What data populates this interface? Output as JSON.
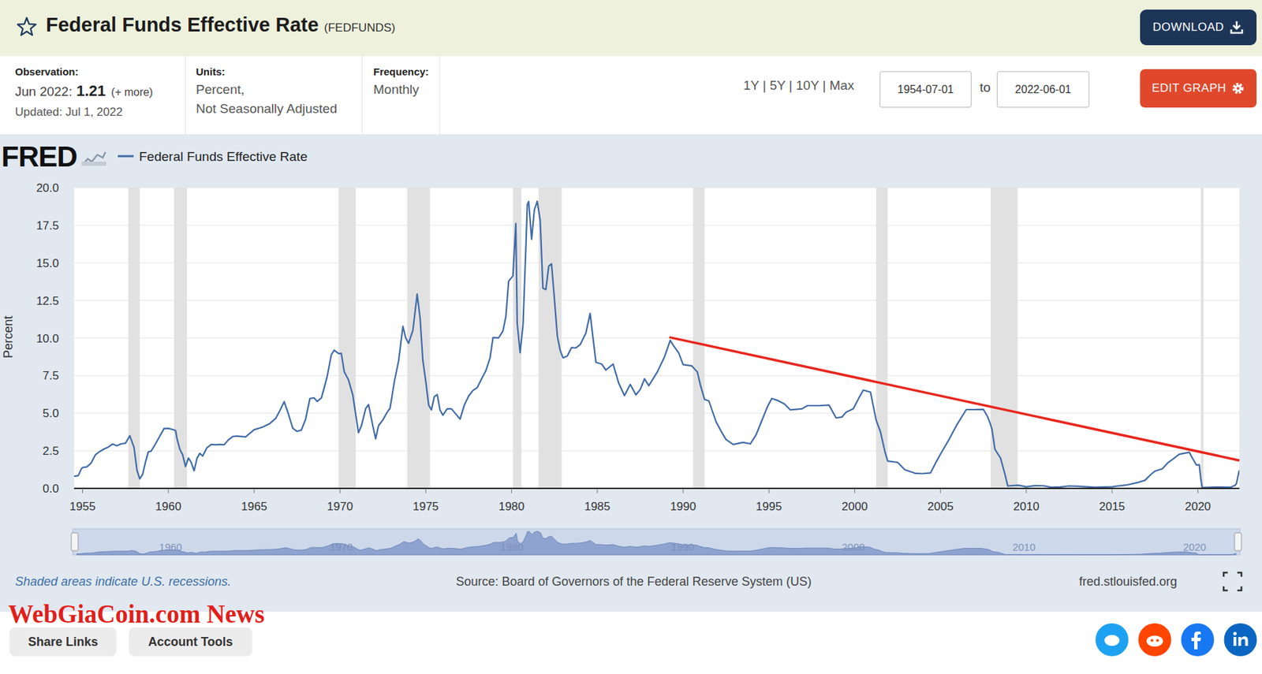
{
  "page": {
    "title": "Federal Funds Effective Rate",
    "series_id": "(FEDFUNDS)",
    "download": "DOWNLOAD",
    "observation_label": "Observation:",
    "observation_date": "Jun 2022:",
    "observation_value": 1.21,
    "observation_more": "(+ more)",
    "updated": "Updated: Jul 1, 2022",
    "units_label": "Units:",
    "units": [
      "Percent,",
      "Not Seasonally Adjusted"
    ],
    "frequency_label": "Frequency:",
    "frequency": "Monthly",
    "ranges": "1Y | 5Y | 10Y | Max",
    "date_from": "1954-07-01",
    "to": "to",
    "date_to": "2022-06-01",
    "edit_graph": "EDIT GRAPH",
    "logo": "FRED",
    "recession_note": "Shaded areas indicate U.S. recessions.",
    "source": "Source: Board of Governors of the Federal Reserve System (US)",
    "site": "fred.stlouisfed.org",
    "share": "Share Links",
    "account": "Account Tools",
    "watermark": "WebGiaCoin.com News",
    "navigator_ticks": [
      1960,
      1970,
      1980,
      1990,
      2000,
      2010,
      2020
    ]
  },
  "chart_data": {
    "type": "line",
    "y_label": "Percent",
    "legend": "top-left",
    "grid": true,
    "xlim": [
      1954.5,
      2022.42
    ],
    "xticks": [
      1955,
      1960,
      1965,
      1970,
      1975,
      1980,
      1985,
      1990,
      1995,
      2000,
      2005,
      2010,
      2015,
      2020
    ],
    "ylim": [
      0,
      20
    ],
    "yticks": [
      {
        "value": 0,
        "label": "0.0"
      },
      {
        "value": 2.5,
        "label": "2.5"
      },
      {
        "value": 5,
        "label": "5.0"
      },
      {
        "value": 7.5,
        "label": "7.5"
      },
      {
        "value": 10,
        "label": "10.0"
      },
      {
        "value": 12.5,
        "label": "12.5"
      },
      {
        "value": 15,
        "label": "15.0"
      },
      {
        "value": 17.5,
        "label": "17.5"
      },
      {
        "value": 20,
        "label": "20.0"
      }
    ],
    "recessions": [
      [
        1957.67,
        1958.33
      ],
      [
        1960.33,
        1961.08
      ],
      [
        1969.92,
        1970.92
      ],
      [
        1973.92,
        1975.25
      ],
      [
        1980.08,
        1980.58
      ],
      [
        1981.58,
        1982.92
      ],
      [
        1990.58,
        1991.25
      ],
      [
        2001.25,
        2001.92
      ],
      [
        2007.92,
        2009.5
      ],
      [
        2020.17,
        2020.33
      ]
    ],
    "trend_line": {
      "x": [
        1989.2,
        2022.42
      ],
      "values": [
        10.05,
        1.86
      ],
      "color": "#e8261d"
    },
    "x": [
      1954.5,
      1954.75,
      1954.92,
      1955.0,
      1955.25,
      1955.5,
      1955.75,
      1956.0,
      1956.25,
      1956.5,
      1956.75,
      1957.0,
      1957.25,
      1957.5,
      1957.75,
      1957.92,
      1958.0,
      1958.17,
      1958.33,
      1958.5,
      1958.67,
      1958.83,
      1959.0,
      1959.25,
      1959.5,
      1959.75,
      1960.0,
      1960.25,
      1960.42,
      1960.5,
      1960.67,
      1960.83,
      1961.0,
      1961.17,
      1961.33,
      1961.5,
      1961.67,
      1961.83,
      1962.0,
      1962.25,
      1962.5,
      1962.75,
      1963.0,
      1963.25,
      1963.5,
      1963.75,
      1964.0,
      1964.5,
      1965.0,
      1965.5,
      1965.92,
      1966.25,
      1966.5,
      1966.75,
      1967.0,
      1967.25,
      1967.5,
      1967.75,
      1968.0,
      1968.25,
      1968.5,
      1968.67,
      1968.92,
      1969.25,
      1969.5,
      1969.67,
      1969.92,
      1970.08,
      1970.25,
      1970.5,
      1970.75,
      1970.92,
      1971.08,
      1971.25,
      1971.5,
      1971.67,
      1971.92,
      1972.08,
      1972.25,
      1972.5,
      1972.75,
      1972.92,
      1973.17,
      1973.42,
      1973.67,
      1973.83,
      1974.0,
      1974.25,
      1974.5,
      1974.67,
      1974.83,
      1975.0,
      1975.17,
      1975.33,
      1975.5,
      1975.67,
      1975.83,
      1976.0,
      1976.25,
      1976.5,
      1976.75,
      1977.0,
      1977.25,
      1977.5,
      1977.75,
      1978.0,
      1978.25,
      1978.5,
      1978.75,
      1978.92,
      1979.25,
      1979.5,
      1979.67,
      1979.83,
      1980.08,
      1980.25,
      1980.33,
      1980.5,
      1980.67,
      1980.83,
      1980.92,
      1981.0,
      1981.17,
      1981.33,
      1981.5,
      1981.67,
      1981.83,
      1982.0,
      1982.17,
      1982.33,
      1982.5,
      1982.67,
      1982.83,
      1983.0,
      1983.25,
      1983.5,
      1983.75,
      1984.0,
      1984.33,
      1984.58,
      1984.75,
      1984.92,
      1985.25,
      1985.5,
      1985.92,
      1986.25,
      1986.58,
      1986.92,
      1987.25,
      1987.5,
      1987.75,
      1988.0,
      1988.5,
      1988.92,
      1989.25,
      1989.42,
      1989.75,
      1990.0,
      1990.5,
      1990.83,
      1991.0,
      1991.25,
      1991.5,
      1991.92,
      1992.25,
      1992.5,
      1992.92,
      1993.5,
      1993.92,
      1994.25,
      1994.5,
      1994.92,
      1995.17,
      1995.5,
      1995.92,
      1996.25,
      1996.92,
      1997.25,
      1997.92,
      1998.5,
      1998.92,
      1999.25,
      1999.5,
      1999.92,
      2000.25,
      2000.5,
      2000.92,
      2001.08,
      2001.25,
      2001.5,
      2001.75,
      2001.92,
      2002.5,
      2002.92,
      2003.5,
      2003.92,
      2004.42,
      2004.75,
      2005.0,
      2005.5,
      2005.92,
      2006.5,
      2006.92,
      2007.5,
      2007.75,
      2007.92,
      2008.0,
      2008.17,
      2008.5,
      2008.75,
      2008.92,
      2009.5,
      2010.0,
      2010.5,
      2011.0,
      2011.5,
      2012.0,
      2012.5,
      2013.0,
      2014.0,
      2015.0,
      2015.92,
      2016.5,
      2016.92,
      2017.25,
      2017.5,
      2017.92,
      2018.25,
      2018.5,
      2018.92,
      2019.5,
      2019.67,
      2019.92,
      2020.08,
      2020.17,
      2020.25,
      2021.0,
      2021.92,
      2022.17,
      2022.25,
      2022.33,
      2022.42
    ],
    "series": [
      {
        "name": "Federal Funds Effective Rate",
        "color": "#3f6aa6",
        "values": [
          0.8,
          0.85,
          1.28,
          1.39,
          1.43,
          1.68,
          2.24,
          2.45,
          2.62,
          2.75,
          2.95,
          2.84,
          2.96,
          3.0,
          3.5,
          2.98,
          2.72,
          1.2,
          0.63,
          0.93,
          1.76,
          2.42,
          2.48,
          2.96,
          3.47,
          3.98,
          3.99,
          3.92,
          3.85,
          3.32,
          2.6,
          2.24,
          1.45,
          2.02,
          1.73,
          1.17,
          2.0,
          2.33,
          2.15,
          2.71,
          2.92,
          2.9,
          2.92,
          2.9,
          3.23,
          3.45,
          3.48,
          3.42,
          3.9,
          4.08,
          4.32,
          4.65,
          5.17,
          5.77,
          4.94,
          4.0,
          3.79,
          3.88,
          4.61,
          5.98,
          6.02,
          5.78,
          6.02,
          7.41,
          8.9,
          9.19,
          8.97,
          8.98,
          7.76,
          7.21,
          6.2,
          4.9,
          3.71,
          4.16,
          5.31,
          5.57,
          4.14,
          3.3,
          4.17,
          4.55,
          5.06,
          5.33,
          7.09,
          8.49,
          10.78,
          10.01,
          9.65,
          10.51,
          12.92,
          11.34,
          8.53,
          7.13,
          5.54,
          5.22,
          6.1,
          6.24,
          5.22,
          4.87,
          5.29,
          5.29,
          4.95,
          4.61,
          5.54,
          6.14,
          6.51,
          6.7,
          7.28,
          7.81,
          8.69,
          10.03,
          10.01,
          10.47,
          11.43,
          13.78,
          14.13,
          17.61,
          10.98,
          9.03,
          10.87,
          15.85,
          18.9,
          19.08,
          16.57,
          18.52,
          19.1,
          17.82,
          13.31,
          13.22,
          14.78,
          14.94,
          12.59,
          10.12,
          9.2,
          8.68,
          8.8,
          9.37,
          9.34,
          9.56,
          10.32,
          11.64,
          10.0,
          8.38,
          8.27,
          7.87,
          8.27,
          6.99,
          6.17,
          6.91,
          6.22,
          6.58,
          7.29,
          6.83,
          7.75,
          8.76,
          9.85,
          9.53,
          8.99,
          8.23,
          8.15,
          7.74,
          6.91,
          5.91,
          5.82,
          4.43,
          3.73,
          3.25,
          2.92,
          3.06,
          2.96,
          3.56,
          4.26,
          5.45,
          5.98,
          5.85,
          5.6,
          5.22,
          5.29,
          5.5,
          5.5,
          5.54,
          4.68,
          4.74,
          5.07,
          5.3,
          6.02,
          6.54,
          6.4,
          5.49,
          4.54,
          3.77,
          2.49,
          1.82,
          1.73,
          1.24,
          1.01,
          0.98,
          1.03,
          1.76,
          2.28,
          3.26,
          4.16,
          5.24,
          5.24,
          5.26,
          4.76,
          4.24,
          3.94,
          2.61,
          2.01,
          0.97,
          0.16,
          0.21,
          0.11,
          0.18,
          0.17,
          0.07,
          0.1,
          0.16,
          0.14,
          0.07,
          0.11,
          0.24,
          0.39,
          0.54,
          0.91,
          1.15,
          1.3,
          1.7,
          1.91,
          2.27,
          2.4,
          2.04,
          1.55,
          1.58,
          0.65,
          0.05,
          0.09,
          0.08,
          0.2,
          0.33,
          0.77,
          1.21
        ]
      }
    ]
  }
}
